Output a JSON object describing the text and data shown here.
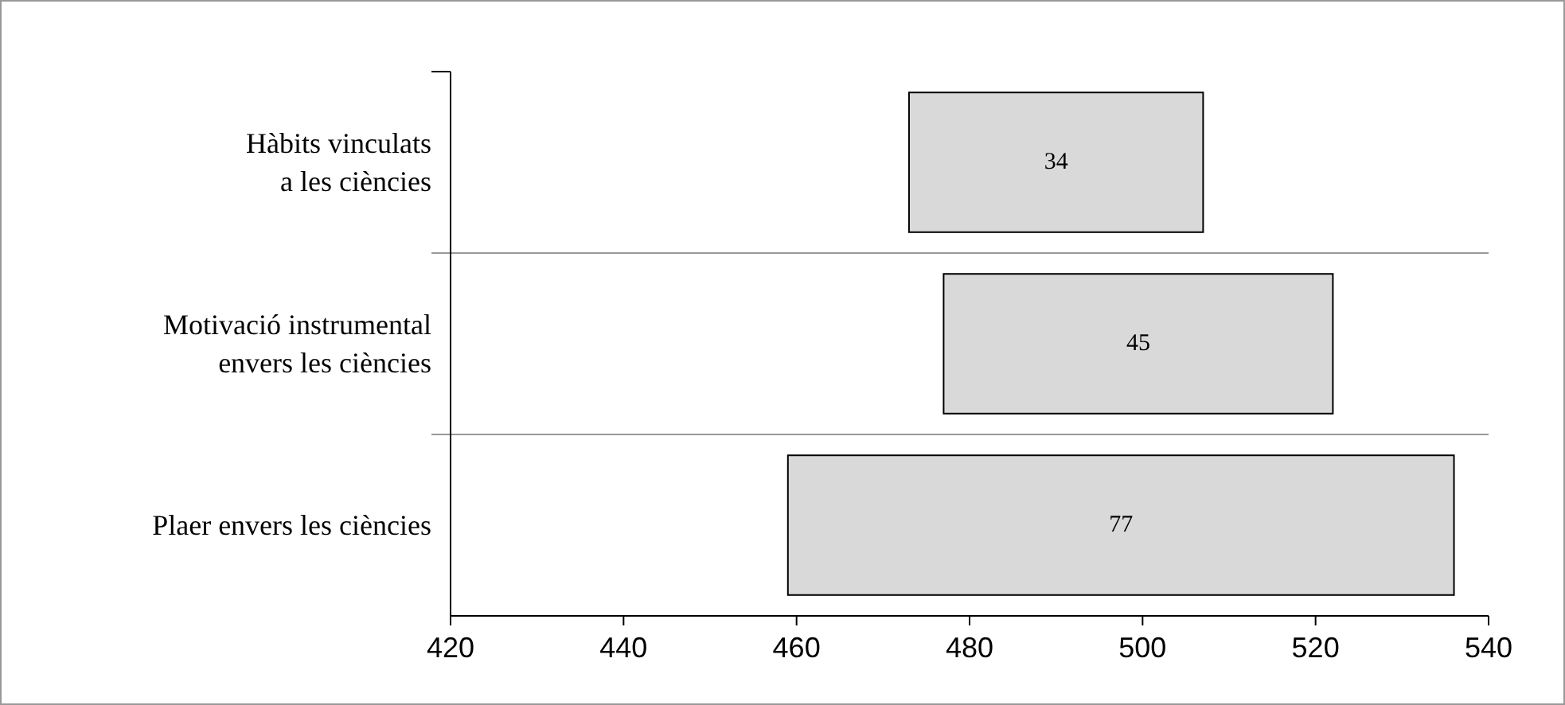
{
  "chart_data": {
    "type": "bar",
    "orientation": "horizontal",
    "categories": [
      "Hàbits vinculats a les ciències",
      "Motivació instrumental envers les ciències",
      "Plaer envers les ciències"
    ],
    "base": [
      473,
      477,
      459
    ],
    "values": [
      34,
      45,
      77
    ],
    "color": "#d9d9d9",
    "data_labels": true,
    "xlim": [
      420,
      540
    ],
    "xticks": [
      420,
      440,
      460,
      480,
      500,
      520,
      540
    ],
    "grid": "y"
  }
}
